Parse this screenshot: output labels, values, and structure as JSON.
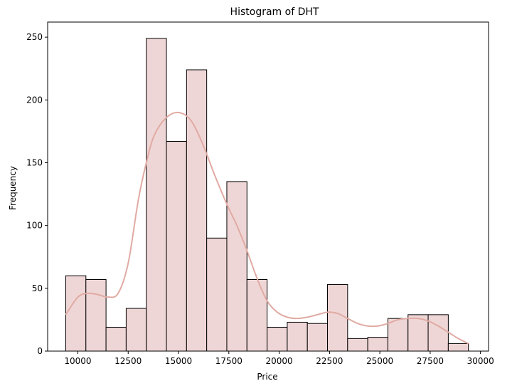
{
  "chart_data": {
    "type": "bar",
    "title": "Histogram of DHT",
    "xlabel": "Price",
    "ylabel": "Frequency",
    "xlim": [
      8500,
      30400
    ],
    "ylim": [
      0,
      262
    ],
    "xticks": [
      10000,
      12500,
      15000,
      17500,
      20000,
      22500,
      25000,
      27500,
      30000
    ],
    "xtick_labels": [
      "10000",
      "12500",
      "15000",
      "17500",
      "20000",
      "22500",
      "25000",
      "27500",
      "30000"
    ],
    "yticks": [
      0,
      50,
      100,
      150,
      200,
      250
    ],
    "ytick_labels": [
      "0",
      "50",
      "100",
      "150",
      "200",
      "250"
    ],
    "grid": false,
    "bar_color": "#efd6d6",
    "bar_edge_color": "#000000",
    "kde_color": "#e0aba3",
    "bins": [
      {
        "start": 9400,
        "end": 10400,
        "count": 60
      },
      {
        "start": 10400,
        "end": 11400,
        "count": 57
      },
      {
        "start": 11400,
        "end": 12400,
        "count": 19
      },
      {
        "start": 12400,
        "end": 13400,
        "count": 34
      },
      {
        "start": 13400,
        "end": 14400,
        "count": 249
      },
      {
        "start": 14400,
        "end": 15400,
        "count": 167
      },
      {
        "start": 15400,
        "end": 16400,
        "count": 224
      },
      {
        "start": 16400,
        "end": 17400,
        "count": 90
      },
      {
        "start": 17400,
        "end": 18400,
        "count": 135
      },
      {
        "start": 18400,
        "end": 19400,
        "count": 57
      },
      {
        "start": 19400,
        "end": 20400,
        "count": 19
      },
      {
        "start": 20400,
        "end": 21400,
        "count": 23
      },
      {
        "start": 21400,
        "end": 22400,
        "count": 22
      },
      {
        "start": 22400,
        "end": 23400,
        "count": 53
      },
      {
        "start": 23400,
        "end": 24400,
        "count": 10
      },
      {
        "start": 24400,
        "end": 25400,
        "count": 11
      },
      {
        "start": 25400,
        "end": 26400,
        "count": 26
      },
      {
        "start": 26400,
        "end": 27400,
        "count": 29
      },
      {
        "start": 27400,
        "end": 28400,
        "count": 29
      },
      {
        "start": 28400,
        "end": 29400,
        "count": 6
      }
    ],
    "kde_points": [
      [
        9400,
        29
      ],
      [
        10000,
        43
      ],
      [
        10500,
        46
      ],
      [
        11000,
        45
      ],
      [
        11500,
        43
      ],
      [
        12000,
        46
      ],
      [
        12500,
        70
      ],
      [
        13000,
        120
      ],
      [
        13400,
        150
      ],
      [
        13800,
        172
      ],
      [
        14400,
        186
      ],
      [
        15000,
        190
      ],
      [
        15600,
        184
      ],
      [
        16200,
        165
      ],
      [
        16800,
        140
      ],
      [
        17400,
        117
      ],
      [
        17900,
        100
      ],
      [
        18400,
        80
      ],
      [
        18900,
        58
      ],
      [
        19400,
        40
      ],
      [
        19900,
        31
      ],
      [
        20400,
        27
      ],
      [
        20900,
        26
      ],
      [
        21400,
        27
      ],
      [
        21900,
        29
      ],
      [
        22400,
        31
      ],
      [
        22900,
        30
      ],
      [
        23400,
        26
      ],
      [
        23900,
        22
      ],
      [
        24400,
        20
      ],
      [
        24900,
        20
      ],
      [
        25400,
        22
      ],
      [
        25900,
        25
      ],
      [
        26400,
        26
      ],
      [
        26900,
        26
      ],
      [
        27400,
        24
      ],
      [
        27900,
        20
      ],
      [
        28400,
        15
      ],
      [
        28900,
        10
      ],
      [
        29400,
        6
      ]
    ]
  }
}
